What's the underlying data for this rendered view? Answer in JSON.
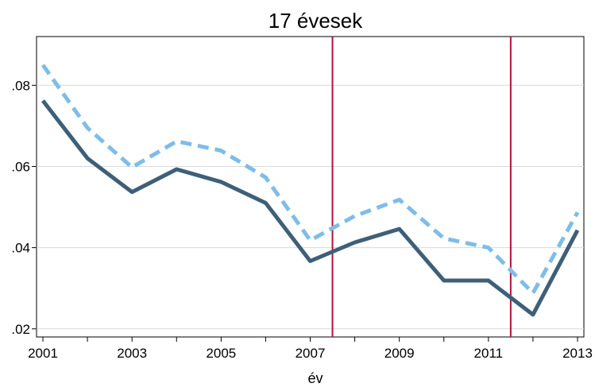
{
  "chart_data": {
    "type": "line",
    "title": "17 évesek",
    "xlabel": "év",
    "ylabel": "",
    "x": [
      2001,
      2002,
      2003,
      2004,
      2005,
      2006,
      2007,
      2008,
      2009,
      2010,
      2011,
      2012,
      2013
    ],
    "xlim": [
      2001,
      2013
    ],
    "ylim": [
      0.018,
      0.092
    ],
    "xticks": [
      2001,
      2002,
      2003,
      2004,
      2005,
      2006,
      2007,
      2008,
      2009,
      2010,
      2011,
      2012,
      2013
    ],
    "xtick_labels": [
      {
        "value": 2001,
        "label": "2001"
      },
      {
        "value": 2003,
        "label": "2003"
      },
      {
        "value": 2005,
        "label": "2005"
      },
      {
        "value": 2007,
        "label": "2007"
      },
      {
        "value": 2009,
        "label": "2009"
      },
      {
        "value": 2011,
        "label": "2011"
      },
      {
        "value": 2013,
        "label": "2013"
      }
    ],
    "yticks": [
      {
        "value": 0.02,
        "label": ".02"
      },
      {
        "value": 0.04,
        "label": ".04"
      },
      {
        "value": 0.06,
        "label": ".06"
      },
      {
        "value": 0.08,
        "label": ".08"
      }
    ],
    "grid": true,
    "series": [
      {
        "style": "dashed",
        "color": "#7fbde8",
        "values": [
          0.085,
          0.0695,
          0.0598,
          0.0662,
          0.0639,
          0.0573,
          0.0418,
          0.0478,
          0.0518,
          0.0423,
          0.04,
          0.0288,
          0.0487
        ]
      },
      {
        "style": "solid",
        "color": "#3e5f78",
        "values": [
          0.0762,
          0.062,
          0.0537,
          0.0593,
          0.0562,
          0.051,
          0.0367,
          0.0413,
          0.0446,
          0.0319,
          0.0319,
          0.0235,
          0.0443
        ]
      }
    ],
    "vlines": [
      {
        "x": 2007.5,
        "color": "#b5103c"
      },
      {
        "x": 2011.5,
        "color": "#b5103c"
      }
    ]
  }
}
